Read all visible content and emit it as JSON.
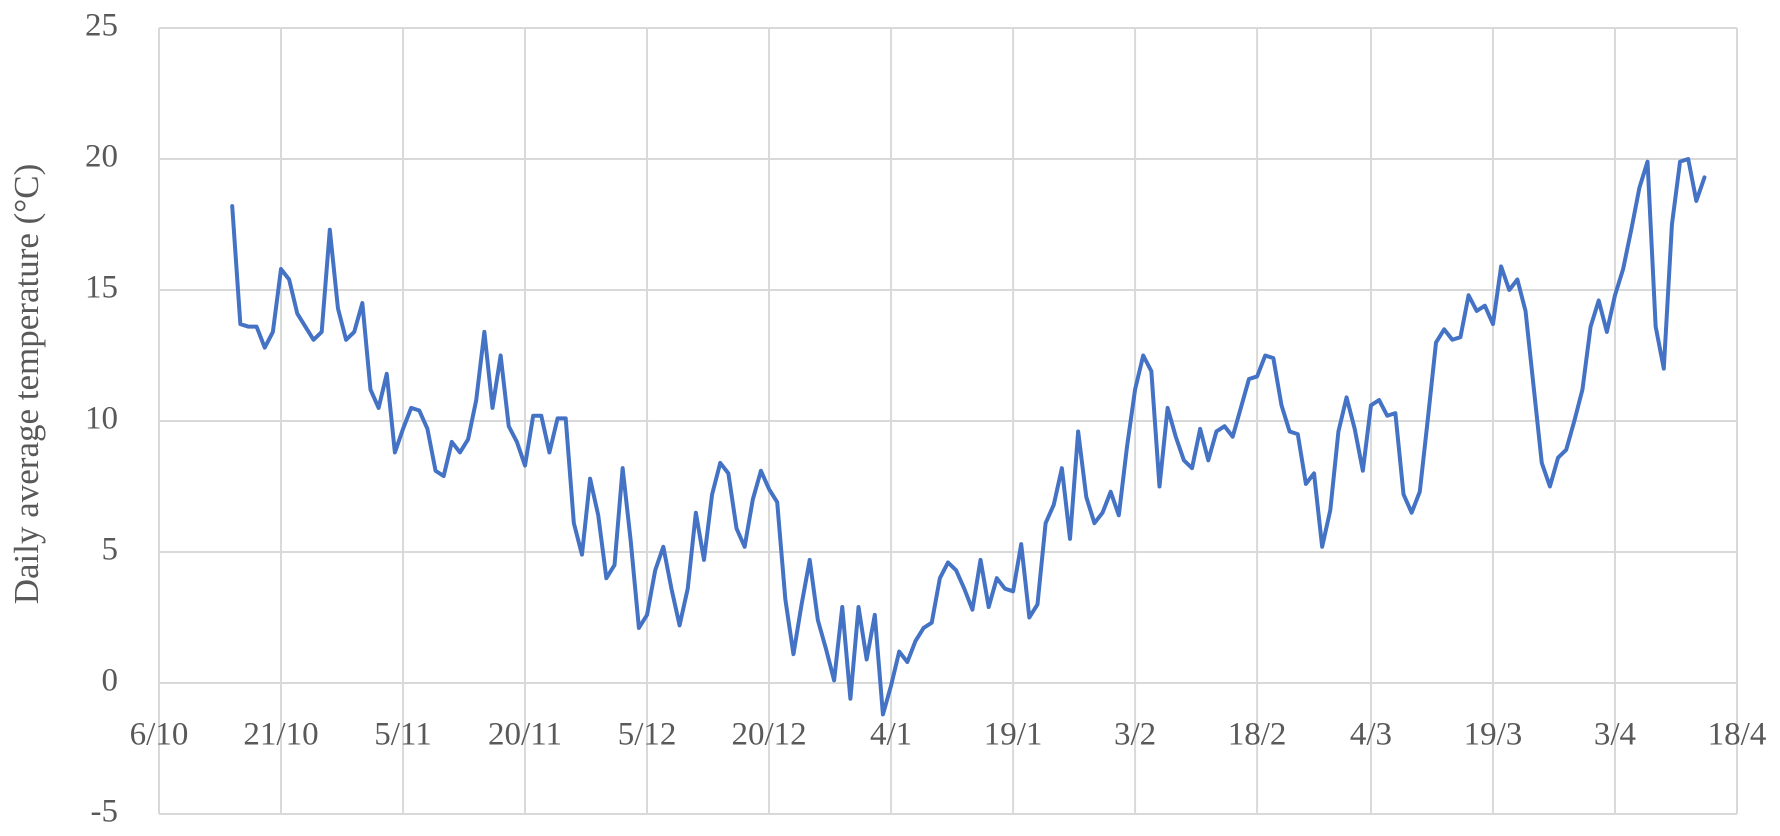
{
  "chart_data": {
    "type": "line",
    "ylabel": "Daily average temperature (°C)",
    "xlim": [
      "6/10",
      "18/4"
    ],
    "xticks": [
      "6/10",
      "21/10",
      "5/11",
      "20/11",
      "5/12",
      "20/12",
      "4/1",
      "19/1",
      "3/2",
      "18/2",
      "4/3",
      "19/3",
      "3/4",
      "18/4"
    ],
    "ylim": [
      -5,
      25
    ],
    "yticks": [
      -5,
      0,
      5,
      10,
      15,
      20,
      25
    ],
    "grid": true,
    "x": [
      "15/10",
      "16/10",
      "17/10",
      "18/10",
      "19/10",
      "20/10",
      "21/10",
      "22/10",
      "23/10",
      "24/10",
      "25/10",
      "26/10",
      "27/10",
      "28/10",
      "29/10",
      "30/10",
      "31/10",
      "1/11",
      "2/11",
      "3/11",
      "4/11",
      "5/11",
      "6/11",
      "7/11",
      "8/11",
      "9/11",
      "10/11",
      "11/11",
      "12/11",
      "13/11",
      "14/11",
      "15/11",
      "16/11",
      "17/11",
      "18/11",
      "19/11",
      "20/11",
      "21/11",
      "22/11",
      "23/11",
      "24/11",
      "25/11",
      "26/11",
      "27/11",
      "28/11",
      "29/11",
      "30/11",
      "1/12",
      "2/12",
      "3/12",
      "4/12",
      "5/12",
      "6/12",
      "7/12",
      "8/12",
      "9/12",
      "10/12",
      "11/12",
      "12/12",
      "13/12",
      "14/12",
      "15/12",
      "16/12",
      "17/12",
      "18/12",
      "19/12",
      "20/12",
      "21/12",
      "22/12",
      "23/12",
      "24/12",
      "25/12",
      "26/12",
      "27/12",
      "28/12",
      "29/12",
      "30/12",
      "31/12",
      "1/1",
      "2/1",
      "3/1",
      "4/1",
      "5/1",
      "6/1",
      "7/1",
      "8/1",
      "9/1",
      "10/1",
      "11/1",
      "12/1",
      "13/1",
      "14/1",
      "15/1",
      "16/1",
      "17/1",
      "18/1",
      "19/1",
      "20/1",
      "21/1",
      "22/1",
      "23/1",
      "24/1",
      "25/1",
      "26/1",
      "27/1",
      "28/1",
      "29/1",
      "30/1",
      "31/1",
      "1/2",
      "2/2",
      "3/2",
      "4/2",
      "5/2",
      "6/2",
      "7/2",
      "8/2",
      "9/2",
      "10/2",
      "11/2",
      "12/2",
      "13/2",
      "14/2",
      "15/2",
      "16/2",
      "17/2",
      "18/2",
      "19/2",
      "20/2",
      "21/2",
      "22/2",
      "23/2",
      "24/2",
      "25/2",
      "26/2",
      "27/2",
      "28/2",
      "1/3",
      "2/3",
      "3/3",
      "4/3",
      "5/3",
      "6/3",
      "7/3",
      "8/3",
      "9/3",
      "10/3",
      "11/3",
      "12/3",
      "13/3",
      "14/3",
      "15/3",
      "16/3",
      "17/3",
      "18/3",
      "19/3",
      "20/3",
      "21/3",
      "22/3",
      "23/3",
      "24/3",
      "25/3",
      "26/3",
      "27/3",
      "28/3",
      "29/3",
      "30/3",
      "31/3",
      "1/4",
      "2/4",
      "3/4",
      "4/4",
      "5/4",
      "6/4",
      "7/4",
      "8/4",
      "9/4",
      "10/4",
      "11/4",
      "12/4",
      "13/4",
      "14/4"
    ],
    "series": [
      {
        "color": "#4472c4",
        "values": [
          18.2,
          13.7,
          13.6,
          13.6,
          12.8,
          13.4,
          15.8,
          15.4,
          14.1,
          13.6,
          13.1,
          13.4,
          17.3,
          14.3,
          13.1,
          13.4,
          14.5,
          11.2,
          10.5,
          11.8,
          8.8,
          9.7,
          10.5,
          10.4,
          9.7,
          8.1,
          7.9,
          9.2,
          8.8,
          9.3,
          10.8,
          13.4,
          10.5,
          12.5,
          9.8,
          9.2,
          8.3,
          10.2,
          10.2,
          8.8,
          10.1,
          10.1,
          6.1,
          4.9,
          7.8,
          6.4,
          4.0,
          4.5,
          8.2,
          5.4,
          2.1,
          2.6,
          4.3,
          5.2,
          3.6,
          2.2,
          3.6,
          6.5,
          4.7,
          7.2,
          8.4,
          8.0,
          5.9,
          5.2,
          7.0,
          8.1,
          7.4,
          6.9,
          3.2,
          1.1,
          3.0,
          4.7,
          2.4,
          1.3,
          0.1,
          2.9,
          -0.6,
          2.9,
          0.9,
          2.6,
          -1.2,
          -0.1,
          1.2,
          0.8,
          1.6,
          2.1,
          2.3,
          4.0,
          4.6,
          4.3,
          3.6,
          2.8,
          4.7,
          2.9,
          4.0,
          3.6,
          3.5,
          5.3,
          2.5,
          3.0,
          6.1,
          6.8,
          8.2,
          5.5,
          9.6,
          7.1,
          6.1,
          6.5,
          7.3,
          6.4,
          9.0,
          11.2,
          12.5,
          11.9,
          7.5,
          10.5,
          9.4,
          8.5,
          8.2,
          9.7,
          8.5,
          9.6,
          9.8,
          9.4,
          10.5,
          11.6,
          11.7,
          12.5,
          12.4,
          10.6,
          9.6,
          9.5,
          7.6,
          8.0,
          5.2,
          6.6,
          9.6,
          10.9,
          9.7,
          8.1,
          10.6,
          10.8,
          10.2,
          10.3,
          7.2,
          6.5,
          7.3,
          10.1,
          13.0,
          13.5,
          13.1,
          13.2,
          14.8,
          14.2,
          14.4,
          13.7,
          15.9,
          15.0,
          15.4,
          14.2,
          11.3,
          8.4,
          7.5,
          8.6,
          8.9,
          10.0,
          11.2,
          13.6,
          14.6,
          13.4,
          14.8,
          15.8,
          17.3,
          18.9,
          19.9,
          13.6,
          12.0,
          17.5,
          19.9,
          20.0,
          18.4,
          19.3
        ]
      }
    ]
  }
}
